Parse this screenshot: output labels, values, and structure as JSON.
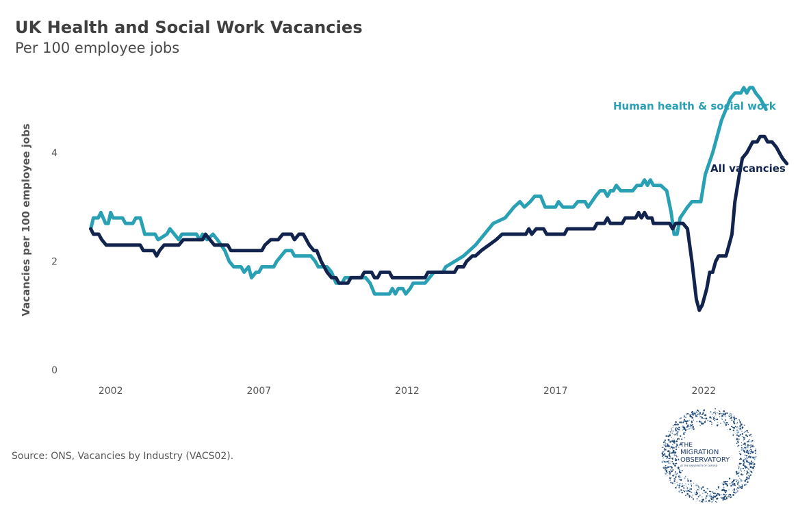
{
  "title": "UK Health and Social Work Vacancies",
  "subtitle": "Per 100 employee jobs",
  "source": "Source: ONS, Vacancies by Industry (VACS02).",
  "logo": {
    "line1": "THE",
    "line2": "MIGRATION",
    "line3": "OBSERVATORY",
    "line4": "AT THE UNIVERSITY OF OXFORD",
    "icon": "migration-observatory-logo"
  },
  "colors": {
    "health": "#2aa0b5",
    "all": "#12244d"
  },
  "chart_data": {
    "type": "line",
    "title": "UK Health and Social Work Vacancies",
    "subtitle": "Per 100 employee jobs",
    "xlabel": "",
    "ylabel": "Vacancies per 100 employee jobs",
    "xlim": [
      2001.5,
      2024.3
    ],
    "ylim": [
      -0.2,
      5.4
    ],
    "x_ticks": [
      2002,
      2007,
      2012,
      2017,
      2022
    ],
    "y_ticks": [
      0,
      2,
      4
    ],
    "grid": false,
    "legend": "inline labels at line ends",
    "series": [
      {
        "name": "Human health & social work",
        "color": "#2aa0b5",
        "points": [
          [
            2001.33,
            2.6
          ],
          [
            2001.42,
            2.8
          ],
          [
            2001.58,
            2.8
          ],
          [
            2001.67,
            2.9
          ],
          [
            2001.83,
            2.7
          ],
          [
            2001.92,
            2.7
          ],
          [
            2002.0,
            2.9
          ],
          [
            2002.08,
            2.8
          ],
          [
            2002.4,
            2.8
          ],
          [
            2002.5,
            2.7
          ],
          [
            2002.75,
            2.7
          ],
          [
            2002.85,
            2.8
          ],
          [
            2003.0,
            2.8
          ],
          [
            2003.15,
            2.5
          ],
          [
            2003.5,
            2.5
          ],
          [
            2003.6,
            2.4
          ],
          [
            2003.9,
            2.5
          ],
          [
            2004.0,
            2.6
          ],
          [
            2004.15,
            2.5
          ],
          [
            2004.3,
            2.4
          ],
          [
            2004.4,
            2.5
          ],
          [
            2004.9,
            2.5
          ],
          [
            2005.0,
            2.4
          ],
          [
            2005.1,
            2.5
          ],
          [
            2005.25,
            2.4
          ],
          [
            2005.45,
            2.5
          ],
          [
            2005.6,
            2.4
          ],
          [
            2005.85,
            2.2
          ],
          [
            2006.0,
            2.0
          ],
          [
            2006.15,
            1.9
          ],
          [
            2006.4,
            1.9
          ],
          [
            2006.5,
            1.8
          ],
          [
            2006.65,
            1.9
          ],
          [
            2006.75,
            1.7
          ],
          [
            2006.9,
            1.8
          ],
          [
            2007.0,
            1.8
          ],
          [
            2007.1,
            1.9
          ],
          [
            2007.5,
            1.9
          ],
          [
            2007.6,
            2.0
          ],
          [
            2007.75,
            2.1
          ],
          [
            2007.9,
            2.2
          ],
          [
            2008.1,
            2.2
          ],
          [
            2008.2,
            2.1
          ],
          [
            2008.75,
            2.1
          ],
          [
            2008.9,
            2.0
          ],
          [
            2009.0,
            1.9
          ],
          [
            2009.3,
            1.9
          ],
          [
            2009.45,
            1.8
          ],
          [
            2009.6,
            1.6
          ],
          [
            2009.8,
            1.6
          ],
          [
            2009.9,
            1.7
          ],
          [
            2010.6,
            1.7
          ],
          [
            2010.75,
            1.6
          ],
          [
            2010.9,
            1.4
          ],
          [
            2011.4,
            1.4
          ],
          [
            2011.5,
            1.5
          ],
          [
            2011.6,
            1.4
          ],
          [
            2011.7,
            1.5
          ],
          [
            2011.85,
            1.5
          ],
          [
            2011.95,
            1.4
          ],
          [
            2012.1,
            1.5
          ],
          [
            2012.2,
            1.6
          ],
          [
            2012.6,
            1.6
          ],
          [
            2012.75,
            1.7
          ],
          [
            2012.9,
            1.8
          ],
          [
            2013.2,
            1.8
          ],
          [
            2013.3,
            1.9
          ],
          [
            2013.6,
            2.0
          ],
          [
            2013.9,
            2.1
          ],
          [
            2014.3,
            2.3
          ],
          [
            2014.6,
            2.5
          ],
          [
            2014.9,
            2.7
          ],
          [
            2015.3,
            2.8
          ],
          [
            2015.6,
            3.0
          ],
          [
            2015.8,
            3.1
          ],
          [
            2015.95,
            3.0
          ],
          [
            2016.15,
            3.1
          ],
          [
            2016.3,
            3.2
          ],
          [
            2016.5,
            3.2
          ],
          [
            2016.65,
            3.0
          ],
          [
            2017.0,
            3.0
          ],
          [
            2017.1,
            3.1
          ],
          [
            2017.25,
            3.0
          ],
          [
            2017.6,
            3.0
          ],
          [
            2017.75,
            3.1
          ],
          [
            2018.0,
            3.1
          ],
          [
            2018.1,
            3.0
          ],
          [
            2018.35,
            3.2
          ],
          [
            2018.5,
            3.3
          ],
          [
            2018.65,
            3.3
          ],
          [
            2018.75,
            3.2
          ],
          [
            2018.85,
            3.3
          ],
          [
            2018.95,
            3.3
          ],
          [
            2019.05,
            3.4
          ],
          [
            2019.2,
            3.3
          ],
          [
            2019.6,
            3.3
          ],
          [
            2019.75,
            3.4
          ],
          [
            2019.9,
            3.4
          ],
          [
            2020.0,
            3.5
          ],
          [
            2020.1,
            3.4
          ],
          [
            2020.2,
            3.5
          ],
          [
            2020.3,
            3.4
          ],
          [
            2020.55,
            3.4
          ],
          [
            2020.75,
            3.3
          ],
          [
            2020.9,
            2.9
          ],
          [
            2021.0,
            2.5
          ],
          [
            2021.1,
            2.5
          ],
          [
            2021.2,
            2.8
          ],
          [
            2021.45,
            3.0
          ],
          [
            2021.6,
            3.1
          ],
          [
            2021.9,
            3.1
          ],
          [
            2022.05,
            3.6
          ],
          [
            2022.3,
            4.0
          ],
          [
            2022.45,
            4.3
          ],
          [
            2022.6,
            4.6
          ],
          [
            2022.75,
            4.8
          ],
          [
            2022.9,
            5.0
          ],
          [
            2023.05,
            5.1
          ],
          [
            2023.25,
            5.1
          ],
          [
            2023.35,
            5.2
          ],
          [
            2023.45,
            5.1
          ],
          [
            2023.55,
            5.2
          ],
          [
            2023.65,
            5.2
          ],
          [
            2023.75,
            5.1
          ],
          [
            2023.9,
            5.0
          ],
          [
            2024.0,
            4.9
          ],
          [
            2024.1,
            4.8
          ]
        ]
      },
      {
        "name": "All vacancies",
        "color": "#12244d",
        "points": [
          [
            2001.33,
            2.6
          ],
          [
            2001.42,
            2.5
          ],
          [
            2001.6,
            2.5
          ],
          [
            2001.7,
            2.4
          ],
          [
            2001.85,
            2.3
          ],
          [
            2003.0,
            2.3
          ],
          [
            2003.1,
            2.2
          ],
          [
            2003.45,
            2.2
          ],
          [
            2003.55,
            2.1
          ],
          [
            2003.65,
            2.2
          ],
          [
            2003.8,
            2.3
          ],
          [
            2004.3,
            2.3
          ],
          [
            2004.45,
            2.4
          ],
          [
            2005.1,
            2.4
          ],
          [
            2005.2,
            2.5
          ],
          [
            2005.35,
            2.4
          ],
          [
            2005.5,
            2.3
          ],
          [
            2005.95,
            2.3
          ],
          [
            2006.05,
            2.2
          ],
          [
            2007.1,
            2.2
          ],
          [
            2007.2,
            2.3
          ],
          [
            2007.4,
            2.4
          ],
          [
            2007.65,
            2.4
          ],
          [
            2007.8,
            2.5
          ],
          [
            2008.1,
            2.5
          ],
          [
            2008.2,
            2.4
          ],
          [
            2008.35,
            2.5
          ],
          [
            2008.5,
            2.5
          ],
          [
            2008.6,
            2.4
          ],
          [
            2008.7,
            2.3
          ],
          [
            2008.85,
            2.2
          ],
          [
            2008.95,
            2.2
          ],
          [
            2009.1,
            2.0
          ],
          [
            2009.3,
            1.8
          ],
          [
            2009.45,
            1.7
          ],
          [
            2009.6,
            1.7
          ],
          [
            2009.7,
            1.6
          ],
          [
            2010.0,
            1.6
          ],
          [
            2010.1,
            1.7
          ],
          [
            2010.45,
            1.7
          ],
          [
            2010.55,
            1.8
          ],
          [
            2010.8,
            1.8
          ],
          [
            2010.9,
            1.7
          ],
          [
            2011.0,
            1.7
          ],
          [
            2011.1,
            1.8
          ],
          [
            2011.4,
            1.8
          ],
          [
            2011.5,
            1.7
          ],
          [
            2012.6,
            1.7
          ],
          [
            2012.7,
            1.8
          ],
          [
            2013.6,
            1.8
          ],
          [
            2013.7,
            1.9
          ],
          [
            2013.9,
            1.9
          ],
          [
            2014.0,
            2.0
          ],
          [
            2014.2,
            2.1
          ],
          [
            2014.3,
            2.1
          ],
          [
            2014.5,
            2.2
          ],
          [
            2014.75,
            2.3
          ],
          [
            2015.0,
            2.4
          ],
          [
            2015.2,
            2.5
          ],
          [
            2016.0,
            2.5
          ],
          [
            2016.1,
            2.6
          ],
          [
            2016.2,
            2.5
          ],
          [
            2016.35,
            2.6
          ],
          [
            2016.6,
            2.6
          ],
          [
            2016.7,
            2.5
          ],
          [
            2017.3,
            2.5
          ],
          [
            2017.4,
            2.6
          ],
          [
            2018.3,
            2.6
          ],
          [
            2018.4,
            2.7
          ],
          [
            2018.65,
            2.7
          ],
          [
            2018.75,
            2.8
          ],
          [
            2018.85,
            2.7
          ],
          [
            2019.25,
            2.7
          ],
          [
            2019.35,
            2.8
          ],
          [
            2019.7,
            2.8
          ],
          [
            2019.8,
            2.9
          ],
          [
            2019.9,
            2.8
          ],
          [
            2020.0,
            2.9
          ],
          [
            2020.1,
            2.8
          ],
          [
            2020.25,
            2.8
          ],
          [
            2020.3,
            2.7
          ],
          [
            2020.85,
            2.7
          ],
          [
            2020.95,
            2.6
          ],
          [
            2021.05,
            2.7
          ],
          [
            2021.3,
            2.7
          ],
          [
            2021.45,
            2.6
          ],
          [
            2021.6,
            2.0
          ],
          [
            2021.75,
            1.3
          ],
          [
            2021.85,
            1.1
          ],
          [
            2021.95,
            1.2
          ],
          [
            2022.1,
            1.5
          ],
          [
            2022.2,
            1.8
          ],
          [
            2022.3,
            1.8
          ],
          [
            2022.4,
            2.0
          ],
          [
            2022.5,
            2.1
          ],
          [
            2022.75,
            2.1
          ],
          [
            2022.85,
            2.3
          ],
          [
            2022.95,
            2.5
          ],
          [
            2023.05,
            3.1
          ],
          [
            2023.2,
            3.6
          ],
          [
            2023.3,
            3.9
          ],
          [
            2023.45,
            4.0
          ],
          [
            2023.55,
            4.1
          ],
          [
            2023.65,
            4.2
          ],
          [
            2023.8,
            4.2
          ],
          [
            2023.9,
            4.3
          ],
          [
            2024.05,
            4.3
          ],
          [
            2024.15,
            4.2
          ],
          [
            2024.3,
            4.2
          ],
          [
            2024.45,
            4.1
          ],
          [
            2024.55,
            4.0
          ],
          [
            2024.65,
            3.9
          ],
          [
            2024.8,
            3.8
          ]
        ]
      }
    ]
  },
  "axis": {
    "y_title": "Vacancies per 100 employee jobs",
    "x_labels": [
      "2002",
      "2007",
      "2012",
      "2017",
      "2022"
    ],
    "y_labels": [
      "0",
      "2",
      "4"
    ]
  },
  "labels": {
    "health": "Human health & social work",
    "all": "All vacancies"
  }
}
